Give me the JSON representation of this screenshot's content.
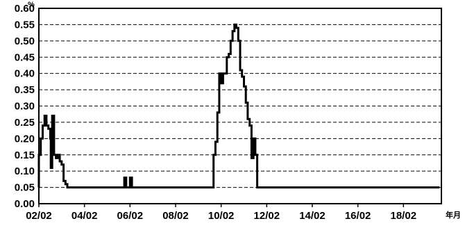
{
  "chart_data": {
    "type": "line",
    "title": "",
    "xlabel": "",
    "ylabel": "",
    "y_unit": "%",
    "x_unit": "年月",
    "ylim": [
      0,
      0.6
    ],
    "y_ticks": [
      "0.00",
      "0.05",
      "0.10",
      "0.15",
      "0.20",
      "0.25",
      "0.30",
      "0.35",
      "0.40",
      "0.45",
      "0.50",
      "0.55",
      "0.60"
    ],
    "x_ticks": [
      "02/02",
      "04/02",
      "06/02",
      "08/02",
      "10/02",
      "12/02",
      "14/02",
      "16/02",
      "18/02"
    ],
    "x_tick_months": [
      0,
      24,
      48,
      72,
      96,
      120,
      144,
      168,
      192
    ],
    "xlim_months": [
      0,
      212
    ],
    "grid": "horizontal dashed",
    "legend": "none",
    "line_color": "#000000",
    "series": [
      {
        "points": [
          [
            0,
            0.05
          ],
          [
            0,
            0.15
          ],
          [
            1,
            0.15
          ],
          [
            1,
            0.2
          ],
          [
            2,
            0.2
          ],
          [
            2,
            0.24
          ],
          [
            3,
            0.24
          ],
          [
            3,
            0.27
          ],
          [
            4,
            0.27
          ],
          [
            4,
            0.24
          ],
          [
            5,
            0.24
          ],
          [
            5,
            0.23
          ],
          [
            6,
            0.23
          ],
          [
            6,
            0.2
          ],
          [
            6.3,
            0.2
          ],
          [
            6.3,
            0.11
          ],
          [
            7,
            0.11
          ],
          [
            7,
            0.27
          ],
          [
            8,
            0.27
          ],
          [
            8,
            0.15
          ],
          [
            9,
            0.15
          ],
          [
            9,
            0.14
          ],
          [
            10,
            0.14
          ],
          [
            10,
            0.15
          ],
          [
            11,
            0.15
          ],
          [
            11,
            0.13
          ],
          [
            12,
            0.13
          ],
          [
            12,
            0.12
          ],
          [
            13,
            0.12
          ],
          [
            13,
            0.07
          ],
          [
            14,
            0.07
          ],
          [
            14,
            0.06
          ],
          [
            15,
            0.06
          ],
          [
            15,
            0.05
          ],
          [
            45,
            0.05
          ],
          [
            45,
            0.08
          ],
          [
            46,
            0.08
          ],
          [
            46,
            0.05
          ],
          [
            48,
            0.05
          ],
          [
            48,
            0.08
          ],
          [
            49,
            0.08
          ],
          [
            49,
            0.05
          ],
          [
            92,
            0.05
          ],
          [
            92,
            0.15
          ],
          [
            93,
            0.15
          ],
          [
            93,
            0.19
          ],
          [
            94,
            0.19
          ],
          [
            94,
            0.28
          ],
          [
            95,
            0.28
          ],
          [
            95,
            0.4
          ],
          [
            96,
            0.4
          ],
          [
            96,
            0.37
          ],
          [
            97,
            0.37
          ],
          [
            97,
            0.4
          ],
          [
            99,
            0.4
          ],
          [
            99,
            0.45
          ],
          [
            100,
            0.45
          ],
          [
            100,
            0.46
          ],
          [
            101,
            0.46
          ],
          [
            101,
            0.5
          ],
          [
            102,
            0.5
          ],
          [
            102,
            0.53
          ],
          [
            103,
            0.53
          ],
          [
            103,
            0.55
          ],
          [
            104,
            0.55
          ],
          [
            104,
            0.54
          ],
          [
            105,
            0.54
          ],
          [
            105,
            0.5
          ],
          [
            106,
            0.5
          ],
          [
            106,
            0.41
          ],
          [
            107,
            0.41
          ],
          [
            107,
            0.39
          ],
          [
            108,
            0.39
          ],
          [
            108,
            0.36
          ],
          [
            109,
            0.36
          ],
          [
            109,
            0.31
          ],
          [
            110,
            0.31
          ],
          [
            110,
            0.26
          ],
          [
            111,
            0.26
          ],
          [
            111,
            0.24
          ],
          [
            112,
            0.24
          ],
          [
            112,
            0.14
          ],
          [
            113,
            0.14
          ],
          [
            113,
            0.2
          ],
          [
            114,
            0.2
          ],
          [
            114,
            0.15
          ],
          [
            115,
            0.15
          ],
          [
            115,
            0.05
          ],
          [
            211,
            0.05
          ]
        ]
      }
    ]
  }
}
